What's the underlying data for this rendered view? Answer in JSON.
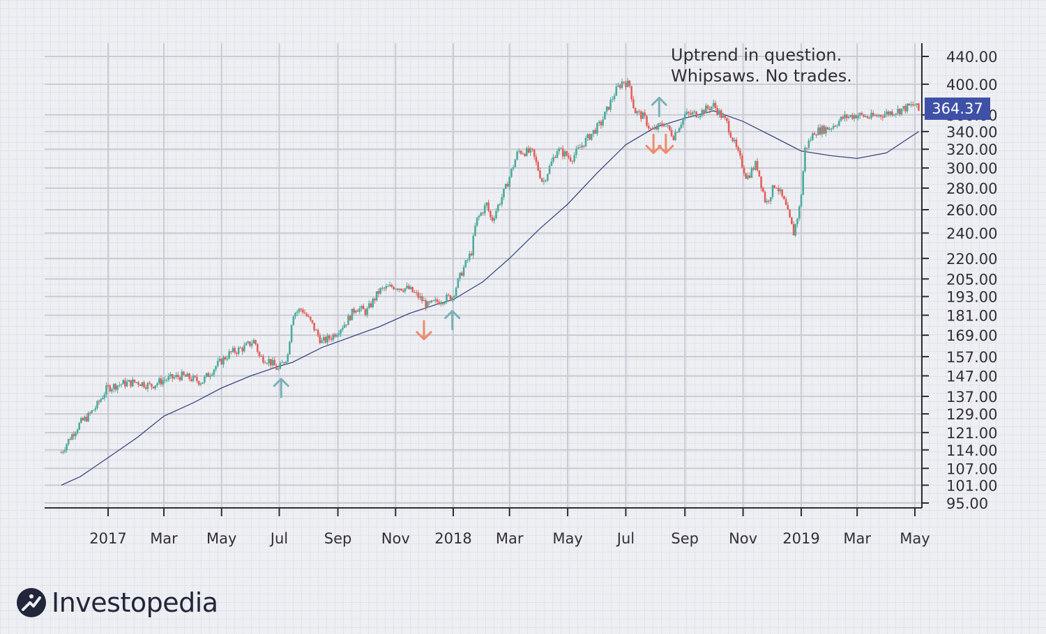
{
  "annotation": {
    "line1": "Uptrend in question.",
    "line2": "Whipsaws. No trades."
  },
  "brand": {
    "name": "Investopedia",
    "icon": "investopedia-logo-icon"
  },
  "colors": {
    "up": "#4aab9d",
    "down": "#e35f5a",
    "ma": "#3a4780",
    "up_arrow": "#7bb0b8",
    "down_arrow": "#ee8a6b",
    "badge": "#3f51a7"
  },
  "chart_data": {
    "type": "candlestick",
    "x_axis": {
      "ticks": [
        "2017",
        "Mar",
        "May",
        "Jul",
        "Sep",
        "Nov",
        "2018",
        "Mar",
        "May",
        "Jul",
        "Sep",
        "Nov",
        "2019",
        "Mar",
        "May"
      ]
    },
    "y_axis": {
      "scale": "log",
      "ticks": [
        "95.00",
        "101.00",
        "107.00",
        "114.00",
        "121.00",
        "129.00",
        "137.00",
        "147.00",
        "157.00",
        "169.00",
        "181.00",
        "193.00",
        "205.00",
        "220.00",
        "240.00",
        "260.00",
        "280.00",
        "300.00",
        "320.00",
        "340.00",
        "360.00",
        "400.00",
        "440.00"
      ],
      "range": [
        95,
        440
      ],
      "position": "right"
    },
    "last_price": "364.37",
    "price_path": [
      [
        "2016-11-10",
        113
      ],
      [
        "2016-11-20",
        119
      ],
      [
        "2016-12-01",
        125
      ],
      [
        "2016-12-10",
        128
      ],
      [
        "2016-12-20",
        133
      ],
      [
        "2016-12-31",
        141
      ],
      [
        "2017-01-15",
        143
      ],
      [
        "2017-02-01",
        144
      ],
      [
        "2017-02-15",
        142
      ],
      [
        "2017-03-01",
        145
      ],
      [
        "2017-03-20",
        147
      ],
      [
        "2017-04-10",
        144
      ],
      [
        "2017-04-25",
        152
      ],
      [
        "2017-05-10",
        159
      ],
      [
        "2017-05-25",
        162
      ],
      [
        "2017-06-05",
        166
      ],
      [
        "2017-06-10",
        157
      ],
      [
        "2017-06-20",
        155
      ],
      [
        "2017-06-30",
        150
      ],
      [
        "2017-07-10",
        158
      ],
      [
        "2017-07-15",
        182
      ],
      [
        "2017-07-25",
        185
      ],
      [
        "2017-08-05",
        175
      ],
      [
        "2017-08-15",
        165
      ],
      [
        "2017-08-25",
        168
      ],
      [
        "2017-09-10",
        177
      ],
      [
        "2017-09-20",
        186
      ],
      [
        "2017-10-01",
        183
      ],
      [
        "2017-10-15",
        197
      ],
      [
        "2017-10-30",
        200
      ],
      [
        "2017-11-15",
        198
      ],
      [
        "2017-11-25",
        193
      ],
      [
        "2017-12-05",
        187
      ],
      [
        "2017-12-20",
        191
      ],
      [
        "2017-12-31",
        193
      ],
      [
        "2018-01-10",
        210
      ],
      [
        "2018-01-20",
        225
      ],
      [
        "2018-01-25",
        250
      ],
      [
        "2018-02-05",
        265
      ],
      [
        "2018-02-10",
        250
      ],
      [
        "2018-02-25",
        280
      ],
      [
        "2018-03-10",
        318
      ],
      [
        "2018-03-25",
        316
      ],
      [
        "2018-04-05",
        285
      ],
      [
        "2018-04-20",
        320
      ],
      [
        "2018-05-05",
        310
      ],
      [
        "2018-05-20",
        330
      ],
      [
        "2018-06-05",
        350
      ],
      [
        "2018-06-20",
        390
      ],
      [
        "2018-06-28",
        405
      ],
      [
        "2018-07-05",
        398
      ],
      [
        "2018-07-10",
        365
      ],
      [
        "2018-07-20",
        357
      ],
      [
        "2018-07-28",
        340
      ],
      [
        "2018-08-10",
        350
      ],
      [
        "2018-08-20",
        335
      ],
      [
        "2018-09-01",
        360
      ],
      [
        "2018-09-15",
        362
      ],
      [
        "2018-10-01",
        372
      ],
      [
        "2018-10-15",
        350
      ],
      [
        "2018-10-25",
        320
      ],
      [
        "2018-11-05",
        290
      ],
      [
        "2018-11-15",
        305
      ],
      [
        "2018-11-25",
        265
      ],
      [
        "2018-12-05",
        285
      ],
      [
        "2018-12-15",
        265
      ],
      [
        "2018-12-24",
        240
      ],
      [
        "2018-12-31",
        265
      ],
      [
        "2019-01-05",
        320
      ],
      [
        "2019-01-15",
        340
      ],
      [
        "2019-02-01",
        345
      ],
      [
        "2019-02-15",
        357
      ],
      [
        "2019-03-01",
        360
      ],
      [
        "2019-03-15",
        357
      ],
      [
        "2019-04-01",
        362
      ],
      [
        "2019-04-15",
        366
      ],
      [
        "2019-05-01",
        373
      ],
      [
        "2019-05-05",
        365
      ]
    ],
    "moving_average": [
      [
        "2016-11-10",
        101
      ],
      [
        "2016-12-01",
        104
      ],
      [
        "2017-01-01",
        111
      ],
      [
        "2017-02-01",
        119
      ],
      [
        "2017-03-01",
        128
      ],
      [
        "2017-04-01",
        134
      ],
      [
        "2017-05-01",
        141
      ],
      [
        "2017-06-01",
        147
      ],
      [
        "2017-07-01",
        152
      ],
      [
        "2017-07-15",
        154
      ],
      [
        "2017-08-15",
        162
      ],
      [
        "2017-09-15",
        168
      ],
      [
        "2017-10-15",
        174
      ],
      [
        "2017-11-15",
        182
      ],
      [
        "2017-12-15",
        188
      ],
      [
        "2018-01-01",
        191
      ],
      [
        "2018-02-01",
        203
      ],
      [
        "2018-03-01",
        220
      ],
      [
        "2018-04-01",
        243
      ],
      [
        "2018-05-01",
        265
      ],
      [
        "2018-06-01",
        295
      ],
      [
        "2018-07-01",
        325
      ],
      [
        "2018-08-01",
        345
      ],
      [
        "2018-09-01",
        356
      ],
      [
        "2018-10-01",
        365
      ],
      [
        "2018-11-01",
        352
      ],
      [
        "2018-12-01",
        335
      ],
      [
        "2019-01-01",
        318
      ],
      [
        "2019-02-01",
        313
      ],
      [
        "2019-03-01",
        310
      ],
      [
        "2019-04-01",
        316
      ],
      [
        "2019-05-05",
        340
      ]
    ],
    "signals": [
      {
        "type": "up",
        "date": "2017-07-03",
        "price": 141
      },
      {
        "type": "down",
        "date": "2017-12-01",
        "price": 172
      },
      {
        "type": "up",
        "date": "2017-12-31",
        "price": 178
      },
      {
        "type": "up",
        "date": "2018-08-05",
        "price": 370
      },
      {
        "type": "down",
        "date": "2018-07-30",
        "price": 326
      },
      {
        "type": "down",
        "date": "2018-08-12",
        "price": 326
      }
    ]
  }
}
